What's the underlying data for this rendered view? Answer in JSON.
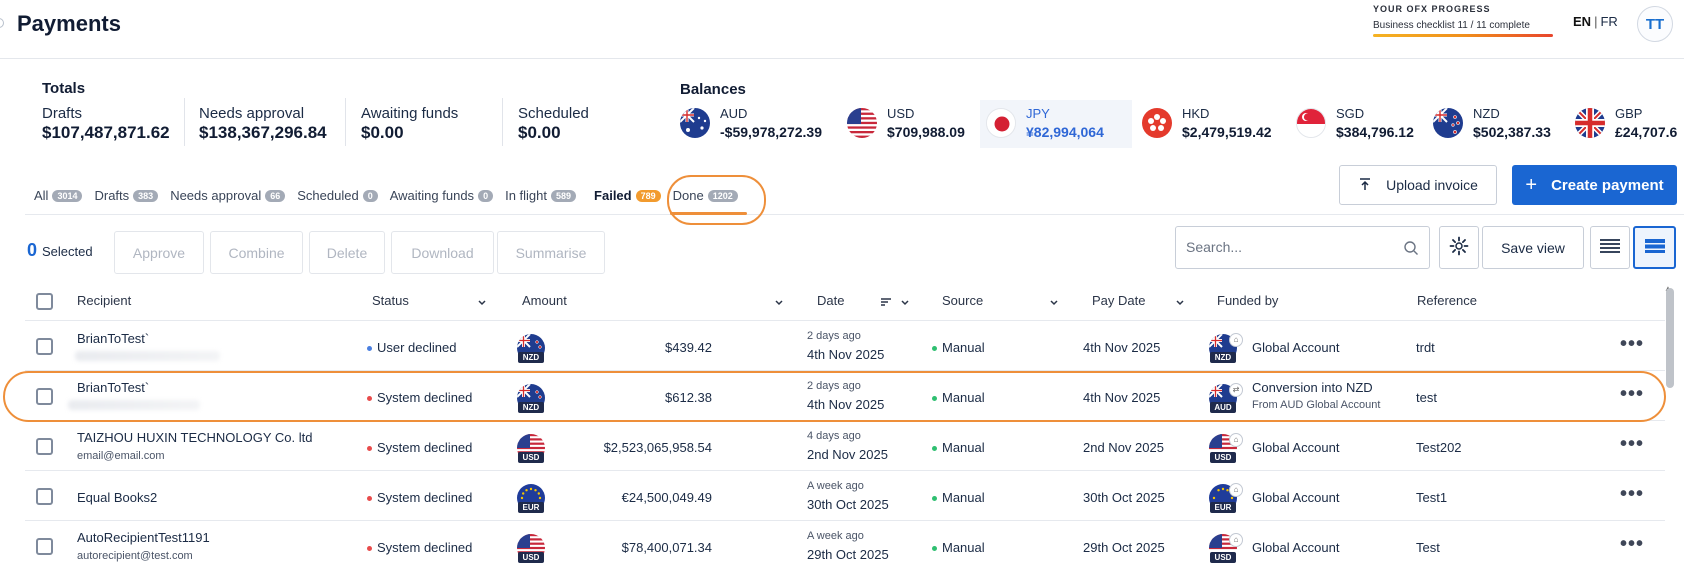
{
  "header": {
    "title": "Payments",
    "progress_title": "YOUR OFX PROGRESS",
    "progress_text": "Business checklist 11 / 11 complete",
    "lang_en": "EN",
    "lang_sep": "|",
    "lang_fr": "FR",
    "avatar": "TT"
  },
  "totals": {
    "title": "Totals",
    "items": [
      {
        "label": "Drafts",
        "value": "$107,487,871.62"
      },
      {
        "label": "Needs approval",
        "value": "$138,367,296.84"
      },
      {
        "label": "Awaiting funds",
        "value": "$0.00"
      },
      {
        "label": "Scheduled",
        "value": "$0.00"
      }
    ]
  },
  "balances": {
    "title": "Balances",
    "items": [
      {
        "code": "AUD",
        "amount": "-$59,978,272.39"
      },
      {
        "code": "USD",
        "amount": "$709,988.09"
      },
      {
        "code": "JPY",
        "amount": "¥82,994,064",
        "selected": true
      },
      {
        "code": "HKD",
        "amount": "$2,479,519.42"
      },
      {
        "code": "SGD",
        "amount": "$384,796.12"
      },
      {
        "code": "NZD",
        "amount": "$502,387.33"
      },
      {
        "code": "GBP",
        "amount": "£24,707.6"
      }
    ]
  },
  "tabs": [
    {
      "label": "All",
      "count": "3014"
    },
    {
      "label": "Drafts",
      "count": "383"
    },
    {
      "label": "Needs approval",
      "count": "66"
    },
    {
      "label": "Scheduled",
      "count": "0"
    },
    {
      "label": "Awaiting funds",
      "count": "0"
    },
    {
      "label": "In flight",
      "count": "589"
    },
    {
      "label": "Failed",
      "count": "789",
      "active": true
    },
    {
      "label": "Done",
      "count": "1202"
    }
  ],
  "buttons": {
    "upload_invoice": "Upload invoice",
    "create_payment": "Create payment",
    "save_view": "Save view"
  },
  "actions": {
    "selected_count": "0",
    "selected_label": "Selected",
    "approve": "Approve",
    "combine": "Combine",
    "delete": "Delete",
    "download": "Download",
    "summarise": "Summarise"
  },
  "search": {
    "placeholder": "Search..."
  },
  "table": {
    "headers": {
      "recipient": "Recipient",
      "status": "Status",
      "amount": "Amount",
      "date": "Date",
      "source": "Source",
      "pay_date": "Pay Date",
      "funded_by": "Funded by",
      "reference": "Reference"
    },
    "rows": [
      {
        "recipient": "BrianToTest`",
        "recipient_sub": "",
        "status": "User declined",
        "status_color": "#4a7fe0",
        "currency": "NZD",
        "amount": "$439.42",
        "date_rel": "2 days ago",
        "date": "4th Nov 2025",
        "source": "Manual",
        "pay_date": "4th Nov 2025",
        "fund_currency": "NZD",
        "funded_by": "Global Account",
        "funded_sub": "",
        "reference": "trdt"
      },
      {
        "recipient": "BrianToTest`",
        "recipient_sub": "",
        "status": "System declined",
        "status_color": "#e84b4b",
        "currency": "NZD",
        "amount": "$612.38",
        "date_rel": "2 days ago",
        "date": "4th Nov 2025",
        "source": "Manual",
        "pay_date": "4th Nov 2025",
        "fund_currency": "AUD",
        "funded_by": "Conversion into NZD",
        "funded_sub": "From AUD Global Account",
        "reference": "test"
      },
      {
        "recipient": "TAIZHOU HUXIN TECHNOLOGY Co. ltd",
        "recipient_sub": "email@email.com",
        "status": "System declined",
        "status_color": "#e84b4b",
        "currency": "USD",
        "amount": "$2,523,065,958.54",
        "date_rel": "4 days ago",
        "date": "2nd Nov 2025",
        "source": "Manual",
        "pay_date": "2nd Nov 2025",
        "fund_currency": "USD",
        "funded_by": "Global Account",
        "funded_sub": "",
        "reference": "Test202"
      },
      {
        "recipient": "Equal Books2",
        "recipient_sub": "",
        "status": "System declined",
        "status_color": "#e84b4b",
        "currency": "EUR",
        "amount": "€24,500,049.49",
        "date_rel": "A week ago",
        "date": "30th Oct 2025",
        "source": "Manual",
        "pay_date": "30th Oct 2025",
        "fund_currency": "EUR",
        "funded_by": "Global Account",
        "funded_sub": "",
        "reference": "Test1"
      },
      {
        "recipient": "AutoRecipientTest1191",
        "recipient_sub": "autorecipient@test.com",
        "status": "System declined",
        "status_color": "#e84b4b",
        "currency": "USD",
        "amount": "$78,400,071.34",
        "date_rel": "A week ago",
        "date": "29th Oct 2025",
        "source": "Manual",
        "pay_date": "29th Oct 2025",
        "fund_currency": "USD",
        "funded_by": "Global Account",
        "funded_sub": "",
        "reference": "Test"
      }
    ],
    "source_dot_color": "#2fbf71"
  }
}
